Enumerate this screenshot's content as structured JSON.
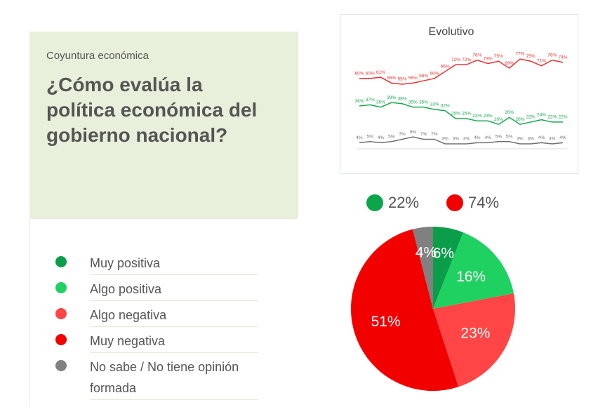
{
  "category": "Coyuntura económica",
  "title": "¿Cómo evalúa la política económica del gobierno nacional?",
  "chart_data": [
    {
      "type": "pie",
      "categories": [
        "Muy positiva",
        "Algo positiva",
        "Algo negativa",
        "Muy negativa",
        "No sabe / No tiene opinión formada"
      ],
      "values": [
        6,
        16,
        23,
        51,
        4
      ],
      "value_labels": [
        "6%",
        "16%",
        "23%",
        "51%",
        "4%"
      ],
      "colors": [
        "#0a9e4a",
        "#1fd160",
        "#ff4545",
        "#f20000",
        "#808080"
      ],
      "summary": [
        {
          "value": 22,
          "label": "22%",
          "color": "#0aa64a"
        },
        {
          "value": 74,
          "label": "74%",
          "color": "#f20000"
        }
      ]
    },
    {
      "type": "line",
      "title": "Evolutivo",
      "series": [
        {
          "color": "#f03030",
          "values": [
            60,
            60,
            61,
            56,
            55,
            56,
            58,
            60,
            66,
            72,
            72,
            76,
            73,
            75,
            69,
            77,
            75,
            71,
            76,
            74
          ],
          "value_labels": [
            "60%",
            "60%",
            "61%",
            "56%",
            "55%",
            "56%",
            "58%",
            "60%",
            "66%",
            "72%",
            "72%",
            "76%",
            "73%",
            "75%",
            "69%",
            "77%",
            "75%",
            "71%",
            "76%",
            "74%"
          ]
        },
        {
          "color": "#17a84e",
          "values": [
            36,
            37,
            35,
            39,
            38,
            35,
            35,
            33,
            32,
            25,
            25,
            23,
            23,
            20,
            26,
            20,
            22,
            24,
            22,
            22
          ],
          "value_labels": [
            "36%",
            "37%",
            "35%",
            "39%",
            "38%",
            "35%",
            "35%",
            "33%",
            "32%",
            "25%",
            "25%",
            "23%",
            "23%",
            "20%",
            "26%",
            "20%",
            "22%",
            "24%",
            "22%",
            "22%"
          ]
        },
        {
          "color": "#707070",
          "values": [
            4,
            5,
            4,
            5,
            7,
            9,
            7,
            7,
            3,
            3,
            3,
            4,
            4,
            5,
            5,
            3,
            3,
            4,
            3,
            4
          ],
          "value_labels": [
            "4%",
            "5%",
            "4%",
            "5%",
            "7%",
            "9%",
            "7%",
            "7%",
            "3%",
            "3%",
            "3%",
            "4%",
            "4%",
            "5%",
            "5%",
            "3%",
            "3%",
            "4%",
            "3%",
            "4%"
          ]
        }
      ]
    }
  ]
}
